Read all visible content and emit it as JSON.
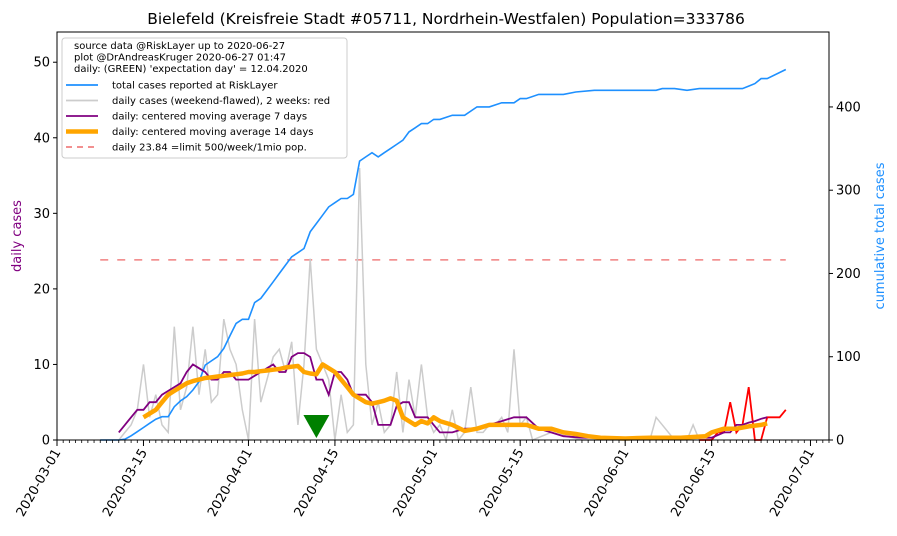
{
  "chart_data": {
    "type": "line",
    "title": "Bielefeld (Kreisfreie Stadt #05711, Nordrhein-Westfalen) Population=333786",
    "ylabel_left": "daily cases",
    "ylabel_right": "cumulative total cases",
    "ylim_left": [
      0,
      54
    ],
    "ylim_right": [
      0,
      490
    ],
    "yticks_left": [
      0,
      10,
      20,
      30,
      40,
      50
    ],
    "yticks_right": [
      0,
      100,
      200,
      300,
      400
    ],
    "x_start": "2020-03-01",
    "x_end": "2020-07-04",
    "xticks": [
      "2020-03-01",
      "2020-03-15",
      "2020-04-01",
      "2020-04-15",
      "2020-05-01",
      "2020-05-15",
      "2020-06-01",
      "2020-06-15",
      "2020-07-01"
    ],
    "legend_position": "top-left",
    "legend_notes": [
      "source data @RiskLayer up to 2020-06-27",
      "plot @DrAndreasKruger 2020-06-27 01:47",
      "daily: (GREEN) 'expectation day' = 12.04.2020"
    ],
    "legend_entries": [
      {
        "label": "total cases reported at RiskLayer",
        "color": "#1e90ff",
        "style": "line"
      },
      {
        "label": "daily cases (weekend-flawed), 2 weeks: red",
        "color": "#cccccc",
        "style": "line"
      },
      {
        "label": "daily: centered moving average 7 days",
        "color": "#800080",
        "style": "line"
      },
      {
        "label": "daily: centered moving average 14 days",
        "color": "#ffa500",
        "style": "thick"
      },
      {
        "label": "daily 23.84 =limit 500/week/1mio pop.",
        "color": "#f08080",
        "style": "dashed"
      }
    ],
    "limit_line_value": 23.84,
    "expectation_day": "2020-04-12",
    "series": [
      {
        "name": "total cases reported at RiskLayer",
        "axis": "right",
        "color": "#1e90ff",
        "x": [
          "2020-03-08",
          "2020-03-11",
          "2020-03-12",
          "2020-03-13",
          "2020-03-14",
          "2020-03-15",
          "2020-03-16",
          "2020-03-17",
          "2020-03-18",
          "2020-03-19",
          "2020-03-20",
          "2020-03-21",
          "2020-03-22",
          "2020-03-23",
          "2020-03-24",
          "2020-03-25",
          "2020-03-26",
          "2020-03-27",
          "2020-03-28",
          "2020-03-29",
          "2020-03-30",
          "2020-03-31",
          "2020-04-01",
          "2020-04-02",
          "2020-04-03",
          "2020-04-04",
          "2020-04-05",
          "2020-04-06",
          "2020-04-07",
          "2020-04-08",
          "2020-04-09",
          "2020-04-10",
          "2020-04-11",
          "2020-04-12",
          "2020-04-13",
          "2020-04-14",
          "2020-04-15",
          "2020-04-16",
          "2020-04-17",
          "2020-04-18",
          "2020-04-19",
          "2020-04-20",
          "2020-04-21",
          "2020-04-22",
          "2020-04-23",
          "2020-04-24",
          "2020-04-25",
          "2020-04-26",
          "2020-04-27",
          "2020-04-28",
          "2020-04-29",
          "2020-04-30",
          "2020-05-01",
          "2020-05-02",
          "2020-05-04",
          "2020-05-06",
          "2020-05-08",
          "2020-05-10",
          "2020-05-12",
          "2020-05-14",
          "2020-05-15",
          "2020-05-16",
          "2020-05-18",
          "2020-05-20",
          "2020-05-22",
          "2020-05-24",
          "2020-05-27",
          "2020-06-01",
          "2020-06-06",
          "2020-06-07",
          "2020-06-09",
          "2020-06-11",
          "2020-06-13",
          "2020-06-20",
          "2020-06-21",
          "2020-06-22",
          "2020-06-23",
          "2020-06-24",
          "2020-06-27"
        ],
        "y": [
          0,
          0,
          1,
          5,
          10,
          15,
          20,
          25,
          28,
          28,
          40,
          47,
          52,
          60,
          70,
          90,
          95,
          100,
          110,
          125,
          140,
          145,
          145,
          165,
          170,
          180,
          190,
          200,
          210,
          220,
          225,
          230,
          250,
          260,
          270,
          280,
          285,
          290,
          290,
          295,
          335,
          340,
          345,
          340,
          345,
          350,
          355,
          360,
          370,
          375,
          380,
          380,
          385,
          385,
          390,
          390,
          400,
          400,
          405,
          405,
          410,
          410,
          415,
          415,
          415,
          418,
          420,
          420,
          420,
          422,
          422,
          420,
          422,
          422,
          425,
          428,
          434,
          434,
          445
        ]
      },
      {
        "name": "daily cases (weekend-flawed), 2 weeks: red",
        "axis": "left",
        "color": "#cccccc",
        "highlight_color": "#ff0000",
        "highlight_from": "2020-06-13",
        "x": [
          "2020-03-08",
          "2020-03-11",
          "2020-03-12",
          "2020-03-13",
          "2020-03-14",
          "2020-03-15",
          "2020-03-16",
          "2020-03-17",
          "2020-03-18",
          "2020-03-19",
          "2020-03-20",
          "2020-03-21",
          "2020-03-22",
          "2020-03-23",
          "2020-03-24",
          "2020-03-25",
          "2020-03-26",
          "2020-03-27",
          "2020-03-28",
          "2020-03-29",
          "2020-03-30",
          "2020-03-31",
          "2020-04-01",
          "2020-04-02",
          "2020-04-03",
          "2020-04-04",
          "2020-04-05",
          "2020-04-06",
          "2020-04-07",
          "2020-04-08",
          "2020-04-09",
          "2020-04-10",
          "2020-04-11",
          "2020-04-12",
          "2020-04-13",
          "2020-04-14",
          "2020-04-15",
          "2020-04-16",
          "2020-04-17",
          "2020-04-18",
          "2020-04-19",
          "2020-04-20",
          "2020-04-21",
          "2020-04-22",
          "2020-04-23",
          "2020-04-24",
          "2020-04-25",
          "2020-04-26",
          "2020-04-27",
          "2020-04-28",
          "2020-04-29",
          "2020-04-30",
          "2020-05-01",
          "2020-05-02",
          "2020-05-03",
          "2020-05-04",
          "2020-05-05",
          "2020-05-06",
          "2020-05-07",
          "2020-05-08",
          "2020-05-09",
          "2020-05-10",
          "2020-05-11",
          "2020-05-12",
          "2020-05-13",
          "2020-05-14",
          "2020-05-15",
          "2020-05-16",
          "2020-05-17",
          "2020-05-20",
          "2020-05-25",
          "2020-05-30",
          "2020-06-04",
          "2020-06-05",
          "2020-06-06",
          "2020-06-09",
          "2020-06-10",
          "2020-06-11",
          "2020-06-12",
          "2020-06-13",
          "2020-06-14",
          "2020-06-15",
          "2020-06-16",
          "2020-06-17",
          "2020-06-18",
          "2020-06-19",
          "2020-06-20",
          "2020-06-21",
          "2020-06-22",
          "2020-06-23",
          "2020-06-24",
          "2020-06-25",
          "2020-06-26",
          "2020-06-27"
        ],
        "y": [
          0,
          0,
          1,
          2,
          4,
          10,
          3,
          6,
          2,
          1,
          15,
          4,
          7,
          15,
          6,
          12,
          5,
          6,
          16,
          12,
          10,
          4,
          0,
          16,
          5,
          8,
          11,
          12,
          9,
          13,
          2,
          10,
          24,
          12,
          10,
          8,
          0,
          6,
          1,
          2,
          36,
          10,
          2,
          5,
          1,
          2,
          9,
          1,
          8,
          3,
          10,
          3,
          1,
          2,
          0,
          4,
          0,
          1,
          7,
          1,
          1,
          2,
          2,
          3,
          1,
          12,
          2,
          3,
          0,
          1,
          0,
          0,
          0,
          0,
          3,
          0,
          0,
          0,
          2,
          0,
          0,
          0,
          1,
          1,
          5,
          1,
          2,
          7,
          0,
          0,
          3,
          3,
          3,
          4
        ]
      },
      {
        "name": "daily: centered moving average 7 days",
        "axis": "left",
        "color": "#800080",
        "x": [
          "2020-03-11",
          "2020-03-12",
          "2020-03-13",
          "2020-03-14",
          "2020-03-15",
          "2020-03-16",
          "2020-03-17",
          "2020-03-18",
          "2020-03-19",
          "2020-03-20",
          "2020-03-21",
          "2020-03-22",
          "2020-03-23",
          "2020-03-24",
          "2020-03-25",
          "2020-03-26",
          "2020-03-27",
          "2020-03-28",
          "2020-03-29",
          "2020-03-30",
          "2020-03-31",
          "2020-04-01",
          "2020-04-02",
          "2020-04-03",
          "2020-04-04",
          "2020-04-05",
          "2020-04-06",
          "2020-04-07",
          "2020-04-08",
          "2020-04-09",
          "2020-04-10",
          "2020-04-11",
          "2020-04-12",
          "2020-04-13",
          "2020-04-14",
          "2020-04-15",
          "2020-04-16",
          "2020-04-17",
          "2020-04-18",
          "2020-04-19",
          "2020-04-20",
          "2020-04-21",
          "2020-04-22",
          "2020-04-23",
          "2020-04-24",
          "2020-04-25",
          "2020-04-26",
          "2020-04-27",
          "2020-04-28",
          "2020-04-29",
          "2020-04-30",
          "2020-05-01",
          "2020-05-02",
          "2020-05-04",
          "2020-05-06",
          "2020-05-08",
          "2020-05-10",
          "2020-05-12",
          "2020-05-14",
          "2020-05-16",
          "2020-05-18",
          "2020-05-20",
          "2020-05-22",
          "2020-05-25",
          "2020-05-28",
          "2020-06-01",
          "2020-06-05",
          "2020-06-10",
          "2020-06-15",
          "2020-06-17",
          "2020-06-18",
          "2020-06-19",
          "2020-06-20",
          "2020-06-21",
          "2020-06-22",
          "2020-06-23",
          "2020-06-24"
        ],
        "y": [
          1,
          2,
          3,
          4,
          4,
          5,
          5,
          6,
          6.5,
          7,
          7.5,
          9,
          10,
          9.5,
          9,
          8,
          8,
          9,
          9,
          8,
          8,
          8,
          8.5,
          9,
          9.5,
          10,
          9,
          9,
          11,
          11.5,
          11.5,
          11,
          8,
          8,
          6,
          9,
          9,
          8,
          6,
          6,
          6,
          5,
          2,
          2,
          2,
          4.5,
          5,
          5,
          3,
          3,
          3,
          2,
          1,
          1,
          1.5,
          1.5,
          2,
          2.5,
          3,
          3,
          1.5,
          1,
          0.5,
          0.3,
          0.3,
          0.3,
          0.3,
          0.3,
          0.3,
          1,
          1,
          2,
          2,
          2.3,
          2.5,
          2.8,
          3
        ]
      },
      {
        "name": "daily: centered moving average 14 days",
        "axis": "left",
        "color": "#ffa500",
        "x": [
          "2020-03-15",
          "2020-03-16",
          "2020-03-17",
          "2020-03-18",
          "2020-03-19",
          "2020-03-20",
          "2020-03-21",
          "2020-03-22",
          "2020-03-23",
          "2020-03-24",
          "2020-03-25",
          "2020-03-26",
          "2020-03-27",
          "2020-03-28",
          "2020-03-29",
          "2020-03-30",
          "2020-03-31",
          "2020-04-01",
          "2020-04-02",
          "2020-04-03",
          "2020-04-04",
          "2020-04-05",
          "2020-04-06",
          "2020-04-07",
          "2020-04-08",
          "2020-04-09",
          "2020-04-10",
          "2020-04-11",
          "2020-04-12",
          "2020-04-13",
          "2020-04-14",
          "2020-04-15",
          "2020-04-16",
          "2020-04-17",
          "2020-04-18",
          "2020-04-19",
          "2020-04-20",
          "2020-04-21",
          "2020-04-22",
          "2020-04-23",
          "2020-04-24",
          "2020-04-25",
          "2020-04-26",
          "2020-04-27",
          "2020-04-28",
          "2020-04-29",
          "2020-04-30",
          "2020-05-01",
          "2020-05-02",
          "2020-05-04",
          "2020-05-06",
          "2020-05-08",
          "2020-05-10",
          "2020-05-12",
          "2020-05-14",
          "2020-05-16",
          "2020-05-18",
          "2020-05-20",
          "2020-05-22",
          "2020-05-24",
          "2020-05-26",
          "2020-05-28",
          "2020-06-01",
          "2020-06-05",
          "2020-06-10",
          "2020-06-14",
          "2020-06-15",
          "2020-06-17",
          "2020-06-19",
          "2020-06-21",
          "2020-06-23",
          "2020-06-24"
        ],
        "y": [
          3,
          3.5,
          4,
          5,
          6,
          6.5,
          7,
          7.5,
          7.8,
          8,
          8.2,
          8.3,
          8.4,
          8.5,
          8.6,
          8.7,
          8.8,
          9,
          9,
          9.1,
          9.2,
          9.3,
          9.4,
          9.6,
          9.7,
          9.8,
          9,
          8.8,
          8.7,
          10,
          9.5,
          9,
          8,
          7,
          6,
          5.5,
          5,
          4.8,
          5,
          5.2,
          5.5,
          5.2,
          3,
          2.5,
          2,
          2.5,
          2.2,
          3,
          2.5,
          2,
          1.2,
          1.5,
          2,
          2,
          2,
          2,
          1.5,
          1.5,
          1,
          0.8,
          0.5,
          0.3,
          0.2,
          0.3,
          0.3,
          0.5,
          1,
          1.5,
          1.5,
          1.8,
          2,
          2.2
        ]
      }
    ]
  }
}
